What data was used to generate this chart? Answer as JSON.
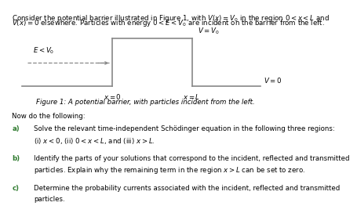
{
  "title_line1": "Consider the potential barrier illustrated in Figure 1, with $V(x) = V_0$ in the region $0 < x < L$ and",
  "title_line2": "$V(x) = 0$ elsewhere. Particles with energy $0 < E < V_0$ are incident on the barrier from the left.",
  "fig_caption": "Figure 1: A potential barrier, with particles incident from the left.",
  "label_E": "$E < V_0$",
  "label_VV0": "$V = V_0$",
  "label_V0": "$V = 0$",
  "label_x0": "$x = 0$",
  "label_xL": "$x = L$",
  "items": [
    {
      "label": "a)",
      "line1": "Solve the relevant time-independent Schödinger equation in the following three regions:",
      "line2": "(i) $x < 0$, (ii) $0 < x < L$, and (iii) $x > L$."
    },
    {
      "label": "b)",
      "line1": "Identify the parts of your solutions that correspond to the incident, reflected and transmitted",
      "line2": "particles. Explain why the remaining term in the region $x > L$ can be set to zero."
    },
    {
      "label": "c)",
      "line1": "Determine the probability currents associated with the incident, reflected and transmitted",
      "line2": "particles."
    }
  ],
  "now_text": "Now do the following:",
  "bg_color": "#ffffff",
  "barrier_color": "#888888",
  "text_color": "#000000",
  "item_label_color": "#2d7a2d",
  "sub_label_color": "#2d7a2d"
}
